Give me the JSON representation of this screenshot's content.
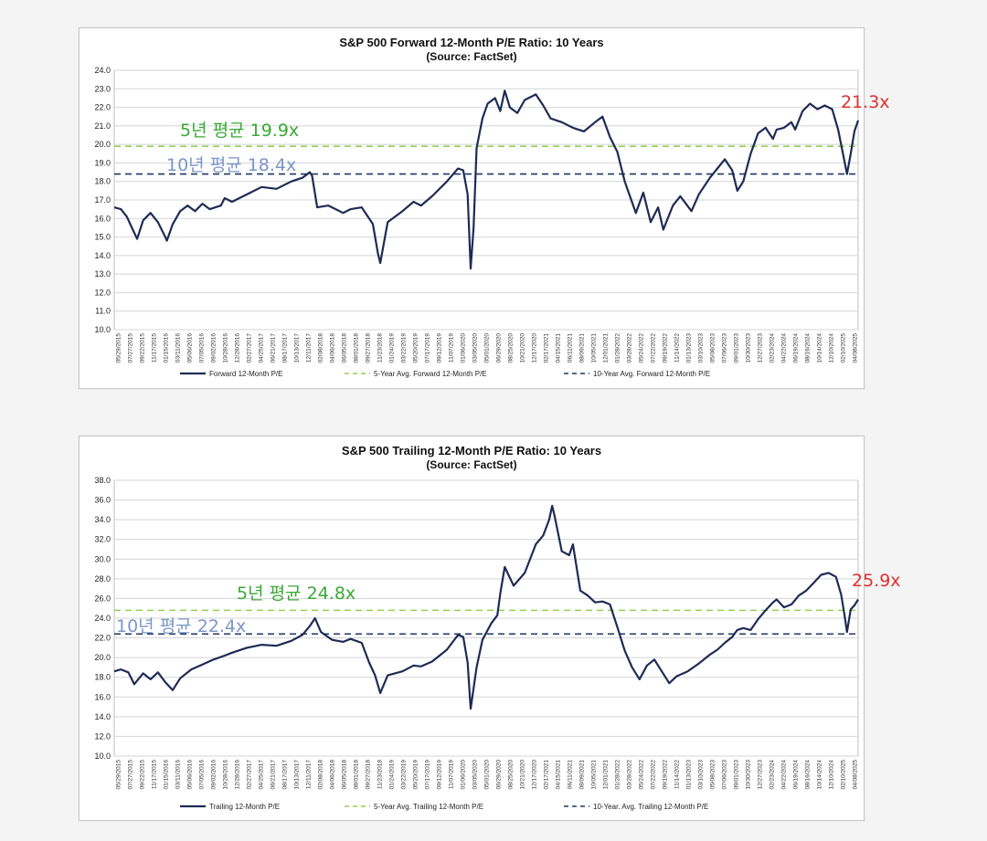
{
  "colors": {
    "series": "#1e2b55",
    "five_year": "#92d050",
    "ten_year": "#1f3864",
    "annot_green": "#3aa935",
    "annot_blue": "#7b96c8",
    "annot_red": "#e03030",
    "grid": "#d4d4d4"
  },
  "chart_data": [
    {
      "type": "line",
      "title": "S&P 500 Forward 12-Month P/E Ratio: 10 Years",
      "subtitle": "(Source: FactSet)",
      "ylim": [
        10.0,
        24.0
      ],
      "yticks": [
        "24.0",
        "23.0",
        "22.0",
        "21.0",
        "20.0",
        "19.0",
        "18.0",
        "17.0",
        "16.0",
        "15.0",
        "14.0",
        "13.0",
        "12.0",
        "11.0",
        "10.0"
      ],
      "grid": "horizontal",
      "xtick_labels": [
        "05/29/2015",
        "07/27/2015",
        "09/22/2015",
        "11/17/2015",
        "01/15/2016",
        "03/11/2016",
        "05/06/2016",
        "07/05/2016",
        "09/02/2016",
        "10/28/2016",
        "12/28/2016",
        "02/27/2017",
        "04/25/2017",
        "06/21/2017",
        "08/17/2017",
        "10/13/2017",
        "12/11/2017",
        "02/08/2018",
        "04/06/2018",
        "06/05/2018",
        "08/01/2018",
        "09/27/2018",
        "11/23/2018",
        "01/24/2019",
        "03/22/2019",
        "05/20/2019",
        "07/17/2019",
        "09/12/2019",
        "11/07/2019",
        "01/06/2020",
        "03/05/2020",
        "05/01/2020",
        "06/29/2020",
        "08/25/2020",
        "10/21/2020",
        "12/17/2020",
        "02/17/2021",
        "04/15/2021",
        "06/11/2021",
        "08/09/2021",
        "10/05/2021",
        "12/01/2021",
        "01/28/2022",
        "03/28/2022",
        "05/24/2022",
        "07/22/2022",
        "09/19/2022",
        "11/14/2022",
        "01/13/2023",
        "03/10/2023",
        "05/08/2023",
        "07/06/2023",
        "09/01/2023",
        "10/30/2023",
        "12/27/2023",
        "02/23/2024",
        "04/22/2024",
        "06/19/2024",
        "08/16/2024",
        "10/14/2024",
        "12/10/2024",
        "02/10/2025",
        "04/08/2025"
      ],
      "x_range": [
        2015.41,
        2025.45
      ],
      "series": [
        {
          "name": "Forward 12-Month P/E",
          "style": "solid",
          "x": [
            2015.41,
            2015.5,
            2015.58,
            2015.66,
            2015.72,
            2015.8,
            2015.9,
            2016.0,
            2016.1,
            2016.12,
            2016.2,
            2016.3,
            2016.4,
            2016.5,
            2016.6,
            2016.7,
            2016.85,
            2016.9,
            2017.0,
            2017.2,
            2017.4,
            2017.6,
            2017.8,
            2017.95,
            2018.05,
            2018.08,
            2018.15,
            2018.3,
            2018.5,
            2018.6,
            2018.75,
            2018.9,
            2018.97,
            2019.0,
            2019.1,
            2019.3,
            2019.45,
            2019.55,
            2019.7,
            2019.9,
            2020.05,
            2020.12,
            2020.18,
            2020.22,
            2020.26,
            2020.3,
            2020.38,
            2020.45,
            2020.55,
            2020.62,
            2020.68,
            2020.75,
            2020.85,
            2020.95,
            2021.1,
            2021.2,
            2021.3,
            2021.45,
            2021.6,
            2021.75,
            2021.9,
            2022.0,
            2022.1,
            2022.2,
            2022.3,
            2022.45,
            2022.55,
            2022.65,
            2022.75,
            2022.82,
            2022.95,
            2023.05,
            2023.2,
            2023.3,
            2023.45,
            2023.55,
            2023.65,
            2023.75,
            2023.82,
            2023.9,
            2024.0,
            2024.1,
            2024.2,
            2024.3,
            2024.35,
            2024.45,
            2024.55,
            2024.6,
            2024.7,
            2024.8,
            2024.9,
            2025.0,
            2025.1,
            2025.18,
            2025.26,
            2025.3,
            2025.35,
            2025.4,
            2025.45
          ],
          "y": [
            16.6,
            16.5,
            16.1,
            15.4,
            14.9,
            15.9,
            16.3,
            15.8,
            15.0,
            14.8,
            15.7,
            16.4,
            16.7,
            16.4,
            16.8,
            16.5,
            16.7,
            17.1,
            16.9,
            17.3,
            17.7,
            17.6,
            18.0,
            18.2,
            18.5,
            18.3,
            16.6,
            16.7,
            16.3,
            16.5,
            16.6,
            15.7,
            14.1,
            13.6,
            15.8,
            16.4,
            16.9,
            16.7,
            17.2,
            18.0,
            18.7,
            18.6,
            17.3,
            13.3,
            15.5,
            19.8,
            21.4,
            22.2,
            22.5,
            21.8,
            22.9,
            22.0,
            21.7,
            22.4,
            22.7,
            22.1,
            21.4,
            21.2,
            20.9,
            20.7,
            21.2,
            21.5,
            20.4,
            19.6,
            18.0,
            16.3,
            17.4,
            15.8,
            16.6,
            15.4,
            16.7,
            17.2,
            16.4,
            17.3,
            18.2,
            18.7,
            19.2,
            18.6,
            17.5,
            18.0,
            19.5,
            20.6,
            20.9,
            20.3,
            20.8,
            20.9,
            21.2,
            20.8,
            21.8,
            22.2,
            21.9,
            22.1,
            21.9,
            20.8,
            19.2,
            18.4,
            19.5,
            20.7,
            21.3
          ]
        }
      ],
      "reference_lines": [
        {
          "name": "5-Year Avg. Forward 12-Month P/E",
          "value": 19.9,
          "style": "dashed",
          "color": "#92d050"
        },
        {
          "name": "10-Year Avg. Forward 12-Month P/E",
          "value": 18.4,
          "style": "dashed",
          "color": "#1f3864"
        }
      ],
      "legend": [
        "Forward 12-Month P/E",
        "5-Year Avg. Forward 12-Month P/E",
        "10-Year Avg. Forward 12-Month P/E"
      ],
      "legend_position": "bottom",
      "annotations": [
        {
          "text": "5년 평균 19.9x",
          "color": "#3aa935"
        },
        {
          "text": "10년 평균 18.4x",
          "color": "#7b96c8"
        },
        {
          "text": "21.3x",
          "color": "#e03030"
        }
      ]
    },
    {
      "type": "line",
      "title": "S&P 500 Trailing 12-Month P/E Ratio: 10 Years",
      "subtitle": "(Source: FactSet)",
      "ylim": [
        10.0,
        38.0
      ],
      "yticks": [
        "38.0",
        "36.0",
        "34.0",
        "32.0",
        "30.0",
        "28.0",
        "26.0",
        "24.0",
        "22.0",
        "20.0",
        "18.0",
        "16.0",
        "14.0",
        "12.0",
        "10.0"
      ],
      "grid": "horizontal",
      "xtick_labels": [
        "05/29/2015",
        "07/27/2015",
        "09/22/2015",
        "11/17/2015",
        "01/15/2016",
        "03/11/2016",
        "05/06/2016",
        "07/05/2016",
        "09/02/2016",
        "10/28/2016",
        "12/28/2016",
        "02/27/2017",
        "04/25/2017",
        "06/21/2017",
        "08/17/2017",
        "10/13/2017",
        "12/11/2017",
        "02/08/2018",
        "04/06/2018",
        "06/05/2018",
        "08/01/2018",
        "09/27/2018",
        "11/23/2018",
        "01/24/2019",
        "03/22/2019",
        "05/20/2019",
        "07/17/2019",
        "09/12/2019",
        "11/07/2019",
        "01/06/2020",
        "03/05/2020",
        "05/01/2020",
        "06/29/2020",
        "08/25/2020",
        "10/21/2020",
        "12/17/2020",
        "02/17/2021",
        "04/15/2021",
        "06/11/2021",
        "08/09/2021",
        "10/05/2021",
        "12/01/2021",
        "01/28/2022",
        "03/28/2022",
        "05/24/2022",
        "07/22/2022",
        "09/19/2022",
        "11/14/2022",
        "01/13/2023",
        "03/10/2023",
        "05/08/2023",
        "07/06/2023",
        "09/01/2023",
        "10/30/2023",
        "12/27/2023",
        "02/23/2024",
        "04/22/2024",
        "06/19/2024",
        "08/16/2024",
        "10/14/2024",
        "12/10/2024",
        "02/10/2025",
        "04/08/2025"
      ],
      "x_range": [
        2015.41,
        2025.45
      ],
      "series": [
        {
          "name": "Trailing 12-Month P/E",
          "style": "solid",
          "x": [
            2015.41,
            2015.5,
            2015.6,
            2015.68,
            2015.8,
            2015.9,
            2016.0,
            2016.1,
            2016.2,
            2016.3,
            2016.45,
            2016.6,
            2016.75,
            2016.9,
            2017.0,
            2017.2,
            2017.4,
            2017.6,
            2017.8,
            2017.95,
            2018.05,
            2018.12,
            2018.2,
            2018.35,
            2018.5,
            2018.6,
            2018.75,
            2018.85,
            2018.93,
            2019.0,
            2019.1,
            2019.3,
            2019.45,
            2019.55,
            2019.7,
            2019.9,
            2020.05,
            2020.12,
            2020.18,
            2020.22,
            2020.3,
            2020.38,
            2020.5,
            2020.58,
            2020.62,
            2020.68,
            2020.8,
            2020.95,
            2021.1,
            2021.2,
            2021.28,
            2021.32,
            2021.35,
            2021.45,
            2021.55,
            2021.6,
            2021.7,
            2021.8,
            2021.9,
            2022.0,
            2022.1,
            2022.2,
            2022.3,
            2022.4,
            2022.5,
            2022.6,
            2022.7,
            2022.8,
            2022.9,
            2023.0,
            2023.15,
            2023.3,
            2023.45,
            2023.55,
            2023.65,
            2023.75,
            2023.82,
            2023.9,
            2024.0,
            2024.1,
            2024.2,
            2024.3,
            2024.35,
            2024.45,
            2024.55,
            2024.65,
            2024.75,
            2024.85,
            2024.95,
            2025.05,
            2025.15,
            2025.22,
            2025.26,
            2025.3,
            2025.35,
            2025.4,
            2025.45
          ],
          "y": [
            18.6,
            18.8,
            18.5,
            17.3,
            18.4,
            17.8,
            18.5,
            17.5,
            16.7,
            17.9,
            18.8,
            19.3,
            19.8,
            20.2,
            20.5,
            21.0,
            21.3,
            21.2,
            21.7,
            22.3,
            23.2,
            24.0,
            22.6,
            21.8,
            21.6,
            21.9,
            21.5,
            19.5,
            18.2,
            16.4,
            18.2,
            18.6,
            19.2,
            19.1,
            19.6,
            20.8,
            22.3,
            22.1,
            19.5,
            14.8,
            19.0,
            21.8,
            23.5,
            24.3,
            26.5,
            29.2,
            27.3,
            28.6,
            31.5,
            32.4,
            34.0,
            35.4,
            34.5,
            30.8,
            30.4,
            31.5,
            26.8,
            26.3,
            25.6,
            25.7,
            25.4,
            23.1,
            20.7,
            19.0,
            17.8,
            19.2,
            19.8,
            18.6,
            17.4,
            18.1,
            18.6,
            19.4,
            20.3,
            20.8,
            21.5,
            22.1,
            22.8,
            23.0,
            22.8,
            23.9,
            24.8,
            25.6,
            25.9,
            25.1,
            25.4,
            26.3,
            26.8,
            27.6,
            28.4,
            28.6,
            28.2,
            26.4,
            24.6,
            22.6,
            24.9,
            25.3,
            25.9
          ]
        }
      ],
      "reference_lines": [
        {
          "name": "5-Year Avg. Trailing 12-Month P/E",
          "value": 24.8,
          "style": "dashed",
          "color": "#92d050"
        },
        {
          "name": "10-Year. Avg. Trailing 12-Month P/E",
          "value": 22.4,
          "style": "dashed",
          "color": "#1f3864"
        }
      ],
      "legend": [
        "Trailing 12-Month P/E",
        "5-Year Avg. Trailing 12-Month P/E",
        "10-Year. Avg. Trailing 12-Month P/E"
      ],
      "legend_position": "bottom",
      "annotations": [
        {
          "text": "5년 평균 24.8x",
          "color": "#3aa935"
        },
        {
          "text": "10년 평균 22.4x",
          "color": "#7b96c8"
        },
        {
          "text": "25.9x",
          "color": "#e03030"
        }
      ]
    }
  ]
}
